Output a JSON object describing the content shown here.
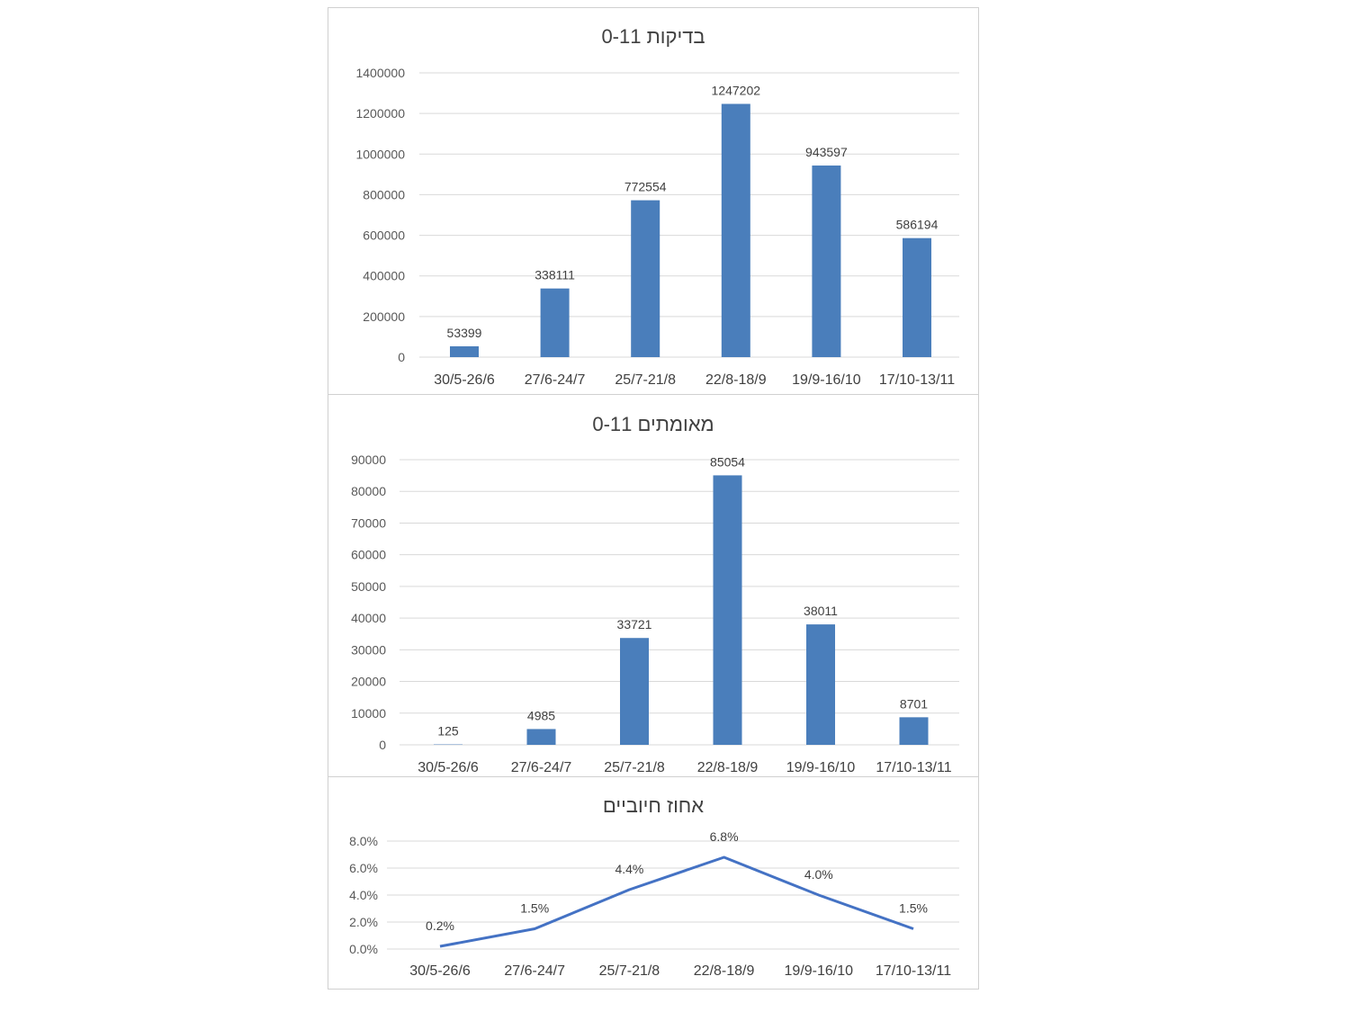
{
  "colors": {
    "bar": "#4a7ebb",
    "line": "#4472c4",
    "grid": "#d9d9d9"
  },
  "chart_data": [
    {
      "type": "bar",
      "title": "בדיקות 0-11",
      "categories": [
        "30/5-26/6",
        "27/6-24/7",
        "25/7-21/8",
        "22/8-18/9",
        "19/9-16/10",
        "17/10-13/11"
      ],
      "values": [
        53399,
        338111,
        772554,
        1247202,
        943597,
        586194
      ],
      "data_labels": [
        "53399",
        "338111",
        "772554",
        "1247202",
        "943597",
        "586194"
      ],
      "yticks": [
        "0",
        "200000",
        "400000",
        "600000",
        "800000",
        "1000000",
        "1200000",
        "1400000"
      ],
      "ylim": [
        0,
        1400000
      ],
      "grid": true
    },
    {
      "type": "bar",
      "title": "מאומתים 0-11",
      "categories": [
        "30/5-26/6",
        "27/6-24/7",
        "25/7-21/8",
        "22/8-18/9",
        "19/9-16/10",
        "17/10-13/11"
      ],
      "values": [
        125,
        4985,
        33721,
        85054,
        38011,
        8701
      ],
      "data_labels": [
        "125",
        "4985",
        "33721",
        "85054",
        "38011",
        "8701"
      ],
      "yticks": [
        "0",
        "10000",
        "20000",
        "30000",
        "40000",
        "50000",
        "60000",
        "70000",
        "80000",
        "90000"
      ],
      "ylim": [
        0,
        90000
      ],
      "grid": true
    },
    {
      "type": "line",
      "title": "אחוז חיוביים",
      "categories": [
        "30/5-26/6",
        "27/6-24/7",
        "25/7-21/8",
        "22/8-18/9",
        "19/9-16/10",
        "17/10-13/11"
      ],
      "values": [
        0.002,
        0.015,
        0.044,
        0.068,
        0.04,
        0.015
      ],
      "data_labels": [
        "0.2%",
        "1.5%",
        "4.4%",
        "6.8%",
        "4.0%",
        "1.5%"
      ],
      "yticks": [
        "0.0%",
        "2.0%",
        "4.0%",
        "6.0%",
        "8.0%"
      ],
      "ylim": [
        0,
        0.08
      ],
      "grid": true
    }
  ]
}
